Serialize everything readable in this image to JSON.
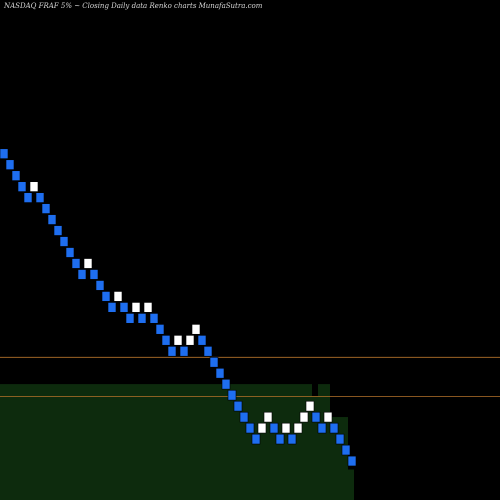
{
  "header": {
    "title": "NASDAQ FRAF 5% ~   Closing Daily data  Renko  charts MunafaSutra.com"
  },
  "colors": {
    "background": "#000000",
    "up_brick": "#ffffff",
    "down_brick": "#1e6ef0",
    "brick_edge": "#000000",
    "volume_fill": "#0d2b0d",
    "line": "#b5722a"
  },
  "chart_data": {
    "type": "renko",
    "title": "NASDAQ FRAF 5% ~   Closing Daily data  Renko  charts MunafaSutra.com",
    "xlabel": "",
    "ylabel": "",
    "grid": false,
    "legend": "none",
    "bricks": [
      {
        "dir": "down",
        "level": 40.8
      },
      {
        "dir": "down",
        "level": 39.9
      },
      {
        "dir": "down",
        "level": 39.0
      },
      {
        "dir": "down",
        "level": 38.1
      },
      {
        "dir": "down",
        "level": 37.2
      },
      {
        "dir": "up",
        "level": 38.1
      },
      {
        "dir": "down",
        "level": 37.2
      },
      {
        "dir": "down",
        "level": 36.3
      },
      {
        "dir": "down",
        "level": 35.4
      },
      {
        "dir": "down",
        "level": 34.5
      },
      {
        "dir": "down",
        "level": 33.6
      },
      {
        "dir": "down",
        "level": 32.7
      },
      {
        "dir": "down",
        "level": 31.8
      },
      {
        "dir": "down",
        "level": 30.9
      },
      {
        "dir": "up",
        "level": 31.8
      },
      {
        "dir": "down",
        "level": 30.9
      },
      {
        "dir": "down",
        "level": 30.0
      },
      {
        "dir": "down",
        "level": 29.1
      },
      {
        "dir": "down",
        "level": 28.2
      },
      {
        "dir": "up",
        "level": 29.1
      },
      {
        "dir": "down",
        "level": 28.2
      },
      {
        "dir": "down",
        "level": 27.3
      },
      {
        "dir": "up",
        "level": 28.2
      },
      {
        "dir": "down",
        "level": 27.3
      },
      {
        "dir": "up",
        "level": 28.2
      },
      {
        "dir": "down",
        "level": 27.3
      },
      {
        "dir": "down",
        "level": 26.4
      },
      {
        "dir": "down",
        "level": 25.5
      },
      {
        "dir": "down",
        "level": 24.6
      },
      {
        "dir": "up",
        "level": 25.5
      },
      {
        "dir": "down",
        "level": 24.6
      },
      {
        "dir": "up",
        "level": 25.5
      },
      {
        "dir": "up",
        "level": 26.4
      },
      {
        "dir": "down",
        "level": 25.5
      },
      {
        "dir": "down",
        "level": 24.6
      },
      {
        "dir": "down",
        "level": 23.7
      },
      {
        "dir": "down",
        "level": 22.8
      },
      {
        "dir": "down",
        "level": 21.9
      },
      {
        "dir": "down",
        "level": 21.0
      },
      {
        "dir": "down",
        "level": 20.1
      },
      {
        "dir": "down",
        "level": 19.2
      },
      {
        "dir": "down",
        "level": 18.3
      },
      {
        "dir": "down",
        "level": 17.4
      },
      {
        "dir": "up",
        "level": 18.3
      },
      {
        "dir": "up",
        "level": 19.2
      },
      {
        "dir": "down",
        "level": 18.3
      },
      {
        "dir": "down",
        "level": 17.4
      },
      {
        "dir": "up",
        "level": 18.3
      },
      {
        "dir": "down",
        "level": 17.4
      },
      {
        "dir": "up",
        "level": 18.3
      },
      {
        "dir": "up",
        "level": 19.2
      },
      {
        "dir": "up",
        "level": 20.1
      },
      {
        "dir": "down",
        "level": 19.2
      },
      {
        "dir": "down",
        "level": 18.3
      },
      {
        "dir": "up",
        "level": 19.2
      },
      {
        "dir": "down",
        "level": 18.3
      },
      {
        "dir": "down",
        "level": 17.4
      },
      {
        "dir": "down",
        "level": 16.5
      },
      {
        "dir": "down",
        "level": 15.6
      }
    ],
    "volume": [
      0.95,
      0.95,
      0.95,
      0.95,
      0.95,
      0.95,
      0.95,
      0.95,
      0.95,
      0.95,
      0.95,
      0.95,
      0.95,
      0.95,
      0.95,
      0.95,
      0.95,
      0.95,
      0.95,
      0.95,
      0.95,
      0.95,
      0.95,
      0.95,
      0.95,
      0.95,
      0.95,
      0.95,
      0.95,
      0.95,
      0.95,
      0.95,
      0.95,
      0.95,
      0.95,
      0.95,
      0.95,
      0.95,
      0.95,
      0.95,
      0.95,
      0.95,
      0.95,
      0.95,
      0.95,
      0.95,
      0.95,
      0.95,
      0.95,
      0.95,
      0.95,
      0.95,
      0.85,
      0.95,
      0.95,
      0.68,
      0.68,
      0.68,
      0.25
    ],
    "date_labels": [
      "",
      "",
      "",
      "",
      "",
      "",
      "",
      "",
      "",
      "",
      "",
      "",
      "",
      "",
      "",
      "",
      "",
      "",
      "",
      "",
      "",
      "",
      "",
      "",
      "",
      "",
      "",
      "",
      "",
      "",
      "",
      "",
      "",
      "",
      "",
      "",
      "",
      "",
      "",
      "",
      "",
      "",
      "",
      "",
      "",
      "",
      "",
      "",
      "",
      "",
      "",
      "",
      "",
      "",
      "",
      "",
      "",
      ""
    ],
    "hlines": [
      23.7,
      20.5
    ],
    "ylim": [
      12.0,
      53.0
    ]
  }
}
